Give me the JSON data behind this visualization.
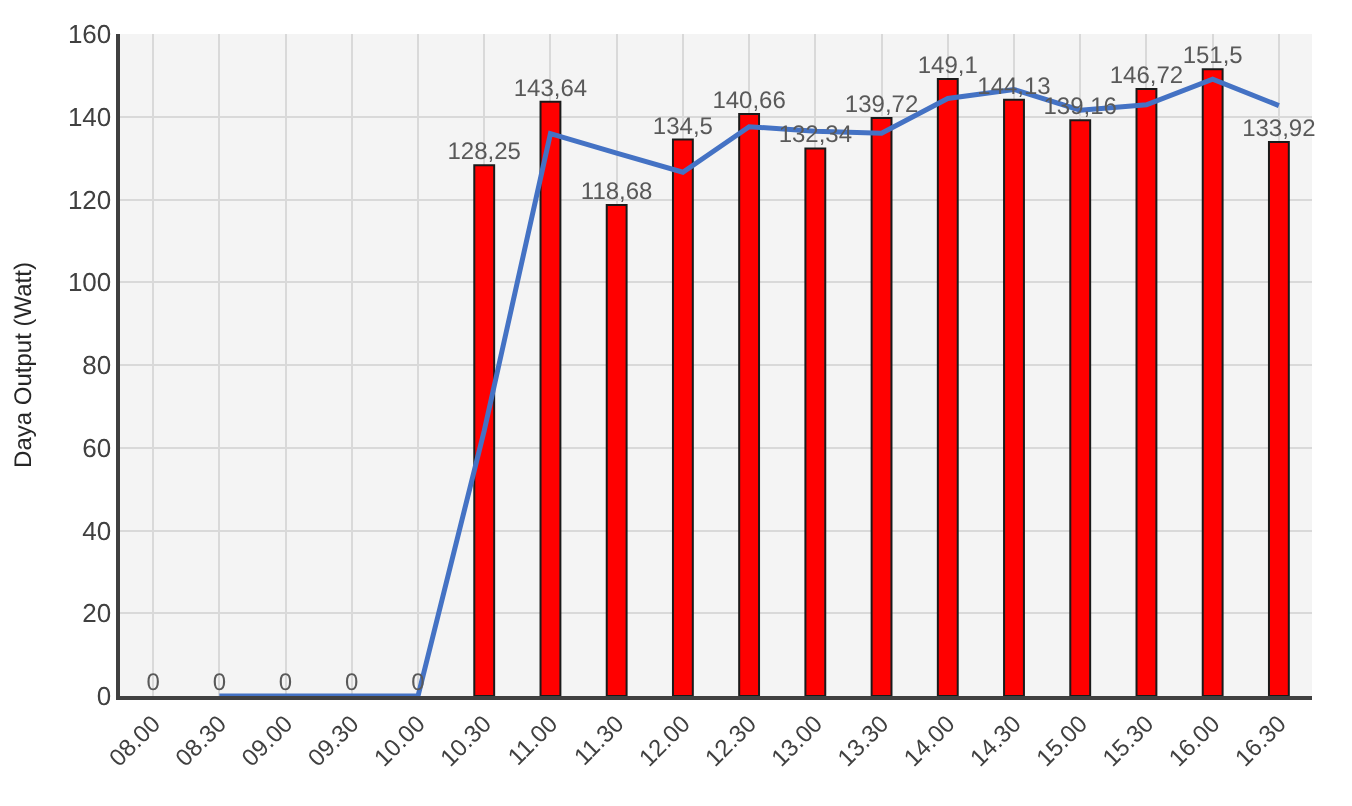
{
  "chart_data": {
    "type": "bar",
    "ylabel": "Daya Output (Watt)",
    "categories": [
      "08.00",
      "08.30",
      "09.00",
      "09.30",
      "10.00",
      "10.30",
      "11.00",
      "11.30",
      "12.00",
      "12.30",
      "13.00",
      "13.30",
      "14.00",
      "14.30",
      "15.00",
      "15.30",
      "16.00",
      "16.30"
    ],
    "series": [
      {
        "color": "#ff0000",
        "values": [
          0,
          0,
          0,
          0,
          0,
          128.25,
          143.64,
          118.68,
          134.5,
          140.66,
          132.34,
          139.72,
          149.1,
          144.13,
          139.16,
          146.72,
          151.5,
          133.92
        ],
        "value_labels": [
          "0",
          "0",
          "0",
          "0",
          "0",
          "128,25",
          "143,64",
          "118,68",
          "134,5",
          "140,66",
          "132,34",
          "139,72",
          "149,1",
          "144,13",
          "139,16",
          "146,72",
          "151,5",
          "133,92"
        ]
      },
      {
        "type": "line",
        "color": "#4472c4",
        "values": [
          null,
          0,
          0,
          0,
          0,
          64.1,
          135.9,
          131.2,
          126.6,
          137.6,
          136.5,
          136.0,
          144.4,
          146.6,
          141.6,
          142.9,
          149.1,
          142.7
        ]
      }
    ],
    "ylim": [
      0,
      160
    ],
    "yticks": [
      0,
      20,
      40,
      60,
      80,
      100,
      120,
      140,
      160
    ],
    "grid": true
  }
}
